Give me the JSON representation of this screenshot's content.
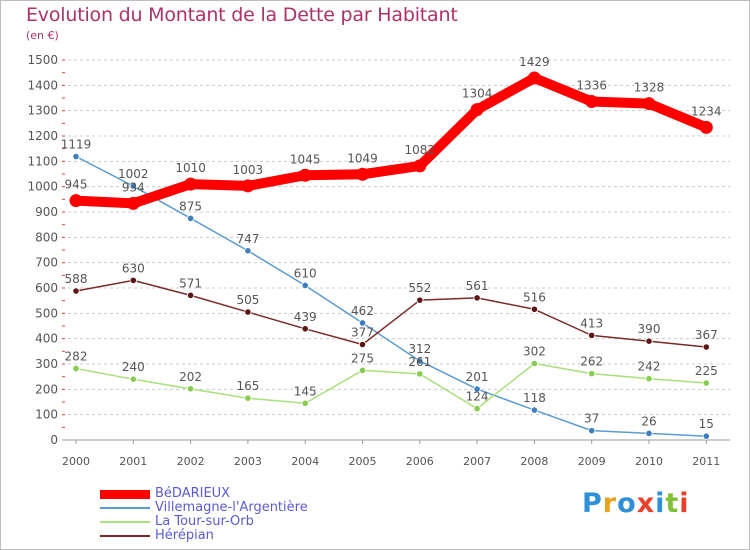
{
  "title": "Evolution du Montant de la Dette par Habitant",
  "subtitle": "(en €)",
  "logo": {
    "text": "Proxiti",
    "letter_colors": [
      "#2f8fd8",
      "#e8a21c",
      "#2f8fd8",
      "#e8402a",
      "#2f8fd8",
      "#7fc23a",
      "#e8402a"
    ]
  },
  "colors": {
    "axis_text": "#555555",
    "grid": "#cccccc",
    "title": "#b0306a",
    "legend_text": "#5a5ad9",
    "label_text": "#555555"
  },
  "chart_data": {
    "type": "line",
    "categories": [
      "2000",
      "2001",
      "2002",
      "2003",
      "2004",
      "2005",
      "2006",
      "2007",
      "2008",
      "2009",
      "2010",
      "2011"
    ],
    "ylim": [
      0,
      1500
    ],
    "yticks": [
      0,
      100,
      200,
      300,
      400,
      500,
      600,
      700,
      800,
      900,
      1000,
      1100,
      1200,
      1300,
      1400,
      1500
    ],
    "grid": "horizontal dashed",
    "legend": "bottom-left",
    "series": [
      {
        "name": "Villemagne-l'Argentière",
        "color": "#5b9bd5",
        "marker": "#3d7fbf",
        "weight": "thin",
        "values": [
          1119,
          1002,
          875,
          747,
          610,
          462,
          312,
          201,
          118,
          37,
          26,
          15
        ]
      },
      {
        "name": "La Tour-sur-Orb",
        "color": "#a8e07a",
        "marker": "#86cc4e",
        "weight": "thin",
        "values": [
          282,
          240,
          202,
          165,
          145,
          275,
          261,
          124,
          302,
          262,
          242,
          225
        ]
      },
      {
        "name": "Hérépian",
        "color": "#7a2a2a",
        "marker": "#5e1515",
        "weight": "thin",
        "values": [
          588,
          630,
          571,
          505,
          439,
          377,
          552,
          561,
          516,
          413,
          390,
          367
        ]
      },
      {
        "name": "BéDARIEUX",
        "color": "#ff0000",
        "marker": "#ff0000",
        "weight": "thick",
        "values": [
          945,
          934,
          1010,
          1003,
          1045,
          1049,
          1082,
          1304,
          1429,
          1336,
          1328,
          1234
        ]
      }
    ],
    "legend_order": [
      "BéDARIEUX",
      "Villemagne-l'Argentière",
      "La Tour-sur-Orb",
      "Hérépian"
    ]
  }
}
